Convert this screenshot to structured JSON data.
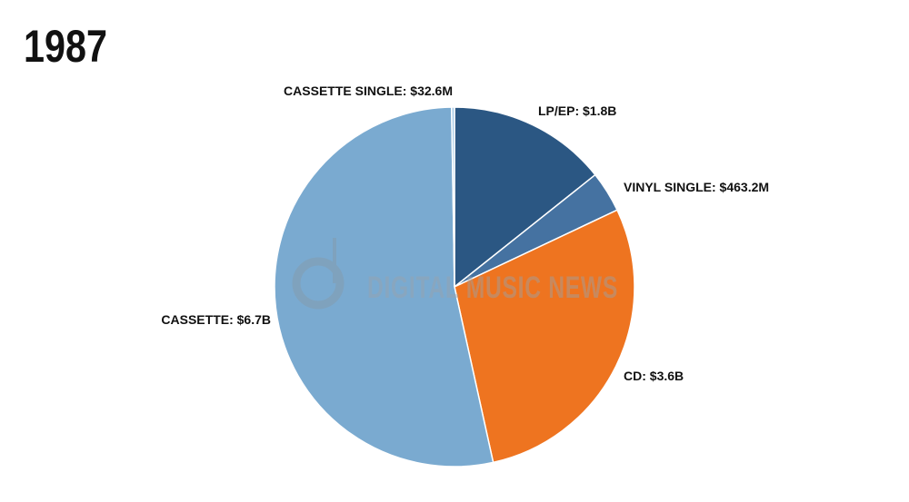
{
  "chart_data": {
    "type": "pie",
    "title": "1987",
    "watermark": "DIGITAL MUSIC NEWS",
    "categories": [
      "LP/EP:",
      "VINYL SINGLE:",
      "CD:",
      "CASSETTE:",
      "CASSETTE SINGLE:"
    ],
    "values": [
      1800000000,
      463200000,
      3600000000,
      6700000000,
      32600000
    ],
    "value_labels": [
      "$1.8B",
      "$463.2M",
      "$3.6B",
      "$6.7B",
      "$32.6M"
    ],
    "colors": [
      "#2b5783",
      "#4572a1",
      "#ee7420",
      "#7aaad0",
      "#a8cbe6"
    ]
  }
}
